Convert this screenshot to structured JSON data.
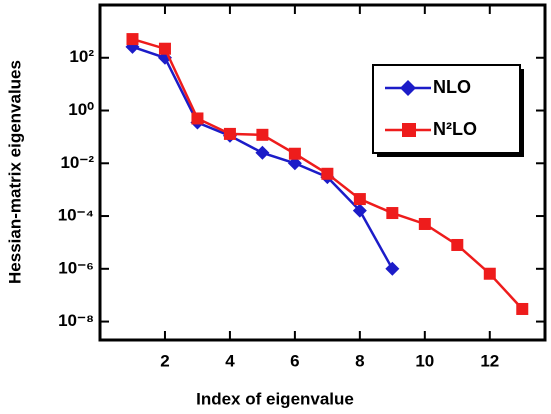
{
  "chart_data": {
    "type": "line",
    "x_label": "Index of eigenvalue",
    "y_label": "Hessian-matrix eigenvalues",
    "log_y": true,
    "legend": "upper right",
    "xlim": [
      0,
      13.7
    ],
    "xticks": [
      2,
      4,
      6,
      8,
      10,
      12
    ],
    "ylim": [
      2e-09,
      10000
    ],
    "yticks": [
      {
        "value": 100,
        "label": "10²"
      },
      {
        "value": 1,
        "label": "10⁰"
      },
      {
        "value": 0.01,
        "label": "10⁻²"
      },
      {
        "value": 0.0001,
        "label": "10⁻⁴"
      },
      {
        "value": 1e-06,
        "label": "10⁻⁶"
      },
      {
        "value": 1e-08,
        "label": "10⁻⁸"
      }
    ],
    "series": [
      {
        "name": "NLO",
        "color": "#1c1cc8",
        "marker": "diamond",
        "x": [
          1,
          2,
          3,
          4,
          5,
          6,
          7,
          8,
          9
        ],
        "values": [
          260,
          100,
          0.35,
          0.11,
          0.025,
          0.01,
          0.003,
          0.00016,
          1e-06
        ]
      },
      {
        "name": "N²LO",
        "color": "#ee1c1c",
        "marker": "square",
        "x": [
          1,
          2,
          3,
          4,
          5,
          6,
          7,
          8,
          9,
          10,
          11,
          12,
          13
        ],
        "values": [
          510,
          220,
          0.5,
          0.13,
          0.12,
          0.023,
          0.004,
          0.00044,
          0.00013,
          5e-05,
          8e-06,
          6.5e-07,
          3e-08
        ]
      }
    ]
  }
}
